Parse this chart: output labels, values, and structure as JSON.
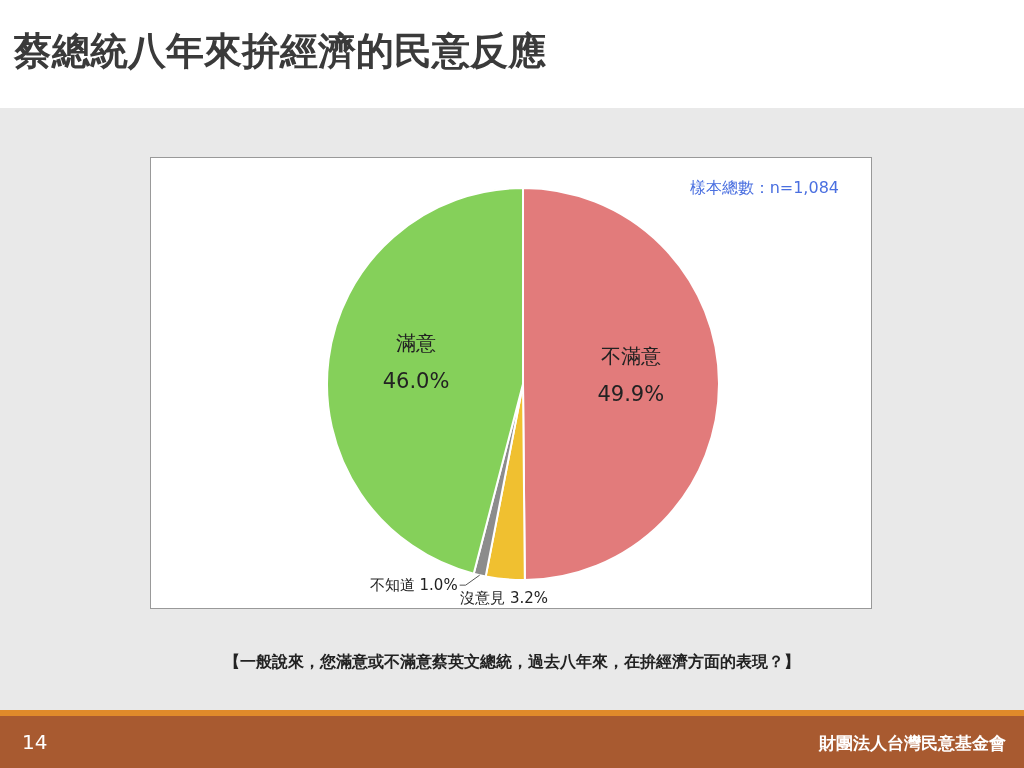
{
  "chart_data": {
    "type": "pie",
    "title": "蔡總統八年來拚經濟的民意反應",
    "categories": [
      "不滿意",
      "沒意見",
      "不知道",
      "滿意"
    ],
    "values": [
      49.9,
      3.2,
      1.0,
      46.0
    ],
    "colors": [
      "#e27b7b",
      "#f0c030",
      "#8c8c8c",
      "#85d05a"
    ],
    "value_labels": [
      "49.9%",
      "3.2%",
      "1.0%",
      "46.0%"
    ],
    "legend": false,
    "annotations": [
      "樣本總數：n=1,084",
      "【一般說來，您滿意或不滿意蔡英文總統，過去八年來，在拚經濟方面的表現？】",
      "14",
      "財團法人台灣民意基金會"
    ]
  }
}
